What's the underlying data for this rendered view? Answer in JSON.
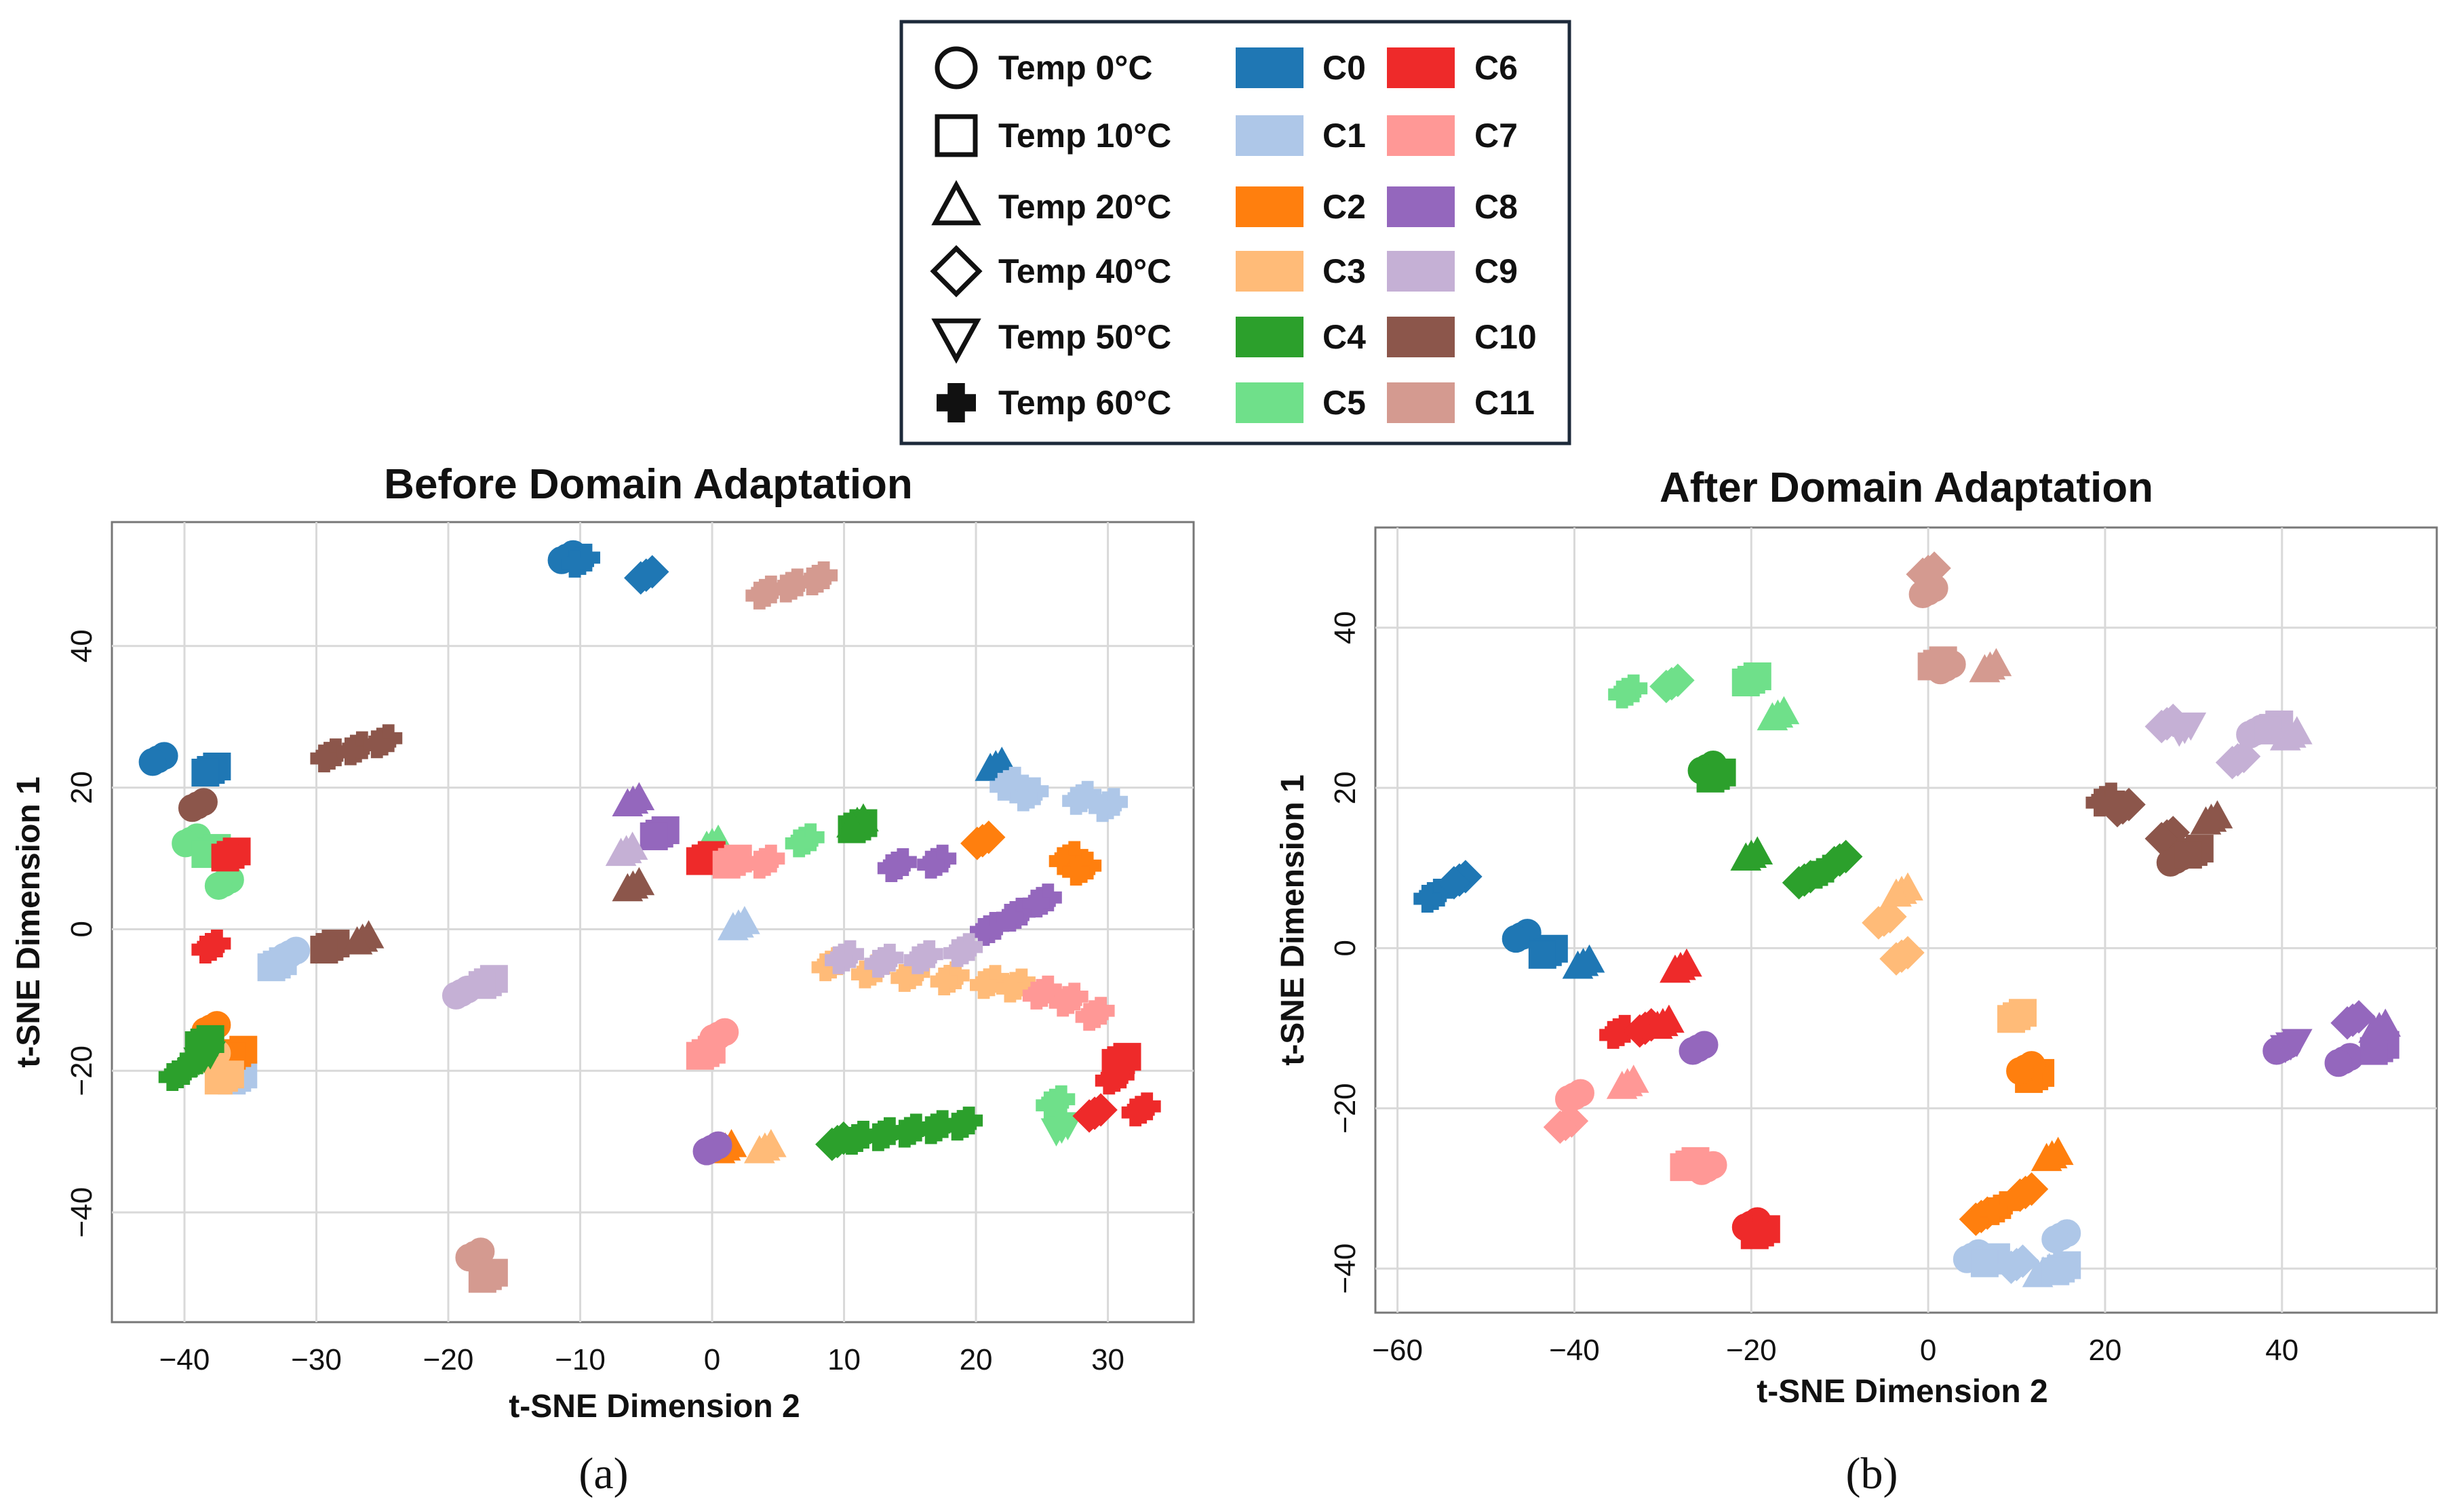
{
  "legend": {
    "shapes": [
      {
        "label": "Temp 0°C",
        "icon": "circle"
      },
      {
        "label": "Temp 10°C",
        "icon": "square"
      },
      {
        "label": "Temp 20°C",
        "icon": "triangle-up"
      },
      {
        "label": "Temp 40°C",
        "icon": "diamond"
      },
      {
        "label": "Temp 50°C",
        "icon": "triangle-down"
      },
      {
        "label": "Temp 60°C",
        "icon": "plus"
      }
    ],
    "clusters": [
      {
        "label": "C0",
        "color": "#1f77b4"
      },
      {
        "label": "C1",
        "color": "#aec7e8"
      },
      {
        "label": "C2",
        "color": "#ff7f0e"
      },
      {
        "label": "C3",
        "color": "#ffbb78"
      },
      {
        "label": "C4",
        "color": "#2ca02c"
      },
      {
        "label": "C5",
        "color": "#6fe08a"
      },
      {
        "label": "C6",
        "color": "#ee2a2a"
      },
      {
        "label": "C7",
        "color": "#ff9896"
      },
      {
        "label": "C8",
        "color": "#9467bd"
      },
      {
        "label": "C9",
        "color": "#c5b0d5"
      },
      {
        "label": "C10",
        "color": "#8c564b"
      },
      {
        "label": "C11",
        "color": "#d49a90"
      }
    ]
  },
  "chart_data": [
    {
      "type": "scatter",
      "title": "Before Domain Adaptation",
      "xlabel": "t-SNE Dimension 2",
      "ylabel": "t-SNE Dimension 1",
      "xlim": [
        -45.5,
        36.5
      ],
      "ylim": [
        -55.5,
        57.5
      ],
      "xticks": [
        -40,
        -30,
        -20,
        -10,
        0,
        10,
        20,
        30
      ],
      "yticks": [
        -40,
        -20,
        0,
        20,
        40
      ],
      "caption": "(a)",
      "points": [
        [
          "C0",
          "circle",
          -42,
          24
        ],
        [
          "C0",
          "square",
          -38,
          22.5
        ],
        [
          "C0",
          "circle",
          -11,
          52.5
        ],
        [
          "C0",
          "plus",
          -10,
          52
        ],
        [
          "C0",
          "diamond",
          -5,
          50
        ],
        [
          "C0",
          "triangle-up",
          21.5,
          23
        ],
        [
          "C1",
          "square",
          -33,
          -5
        ],
        [
          "C1",
          "circle",
          -32,
          -3.5
        ],
        [
          "C1",
          "square",
          -36,
          -21
        ],
        [
          "C1",
          "triangle-up",
          2,
          0.5
        ],
        [
          "C1",
          "plus",
          22.5,
          20.5
        ],
        [
          "C1",
          "plus",
          24,
          19
        ],
        [
          "C1",
          "plus",
          28,
          18.5
        ],
        [
          "C1",
          "plus",
          30,
          17.5
        ],
        [
          "C2",
          "circle",
          -38,
          -14
        ],
        [
          "C2",
          "square",
          -36,
          -17.5
        ],
        [
          "C2",
          "triangle-up",
          1,
          -31
        ],
        [
          "C2",
          "diamond",
          20.5,
          12.5
        ],
        [
          "C2",
          "plus",
          27,
          10
        ],
        [
          "C2",
          "plus",
          28,
          8.5
        ],
        [
          "C3",
          "circle",
          -38,
          -18
        ],
        [
          "C3",
          "square",
          -37,
          -21
        ],
        [
          "C3",
          "triangle-up",
          4,
          -31
        ],
        [
          "C3",
          "plus",
          9,
          -5
        ],
        [
          "C3",
          "plus",
          12,
          -6
        ],
        [
          "C3",
          "plus",
          15,
          -6.5
        ],
        [
          "C3",
          "plus",
          18,
          -7
        ],
        [
          "C3",
          "plus",
          21,
          -7.5
        ],
        [
          "C3",
          "plus",
          23,
          -8
        ],
        [
          "C4",
          "plus",
          -40.5,
          -20.5
        ],
        [
          "C4",
          "plus",
          -39.5,
          -19
        ],
        [
          "C4",
          "square",
          -38.5,
          -16
        ],
        [
          "C4",
          "triangle-down",
          -38.5,
          -18
        ],
        [
          "C4",
          "diamond",
          9.5,
          -30
        ],
        [
          "C4",
          "plus",
          11,
          -29.5
        ],
        [
          "C4",
          "plus",
          13,
          -29
        ],
        [
          "C4",
          "plus",
          15,
          -28.5
        ],
        [
          "C4",
          "plus",
          17,
          -28
        ],
        [
          "C4",
          "plus",
          19,
          -27.5
        ],
        [
          "C4",
          "square",
          11,
          14.5
        ],
        [
          "C4",
          "triangle-up",
          11,
          15
        ],
        [
          "C5",
          "circle",
          -39.5,
          12.5
        ],
        [
          "C5",
          "square",
          -38,
          11
        ],
        [
          "C5",
          "circle",
          -37,
          6.5
        ],
        [
          "C5",
          "triangle-up",
          0,
          12
        ],
        [
          "C5",
          "plus",
          7,
          12.5
        ],
        [
          "C5",
          "plus",
          26,
          -24.5
        ],
        [
          "C5",
          "triangle-down",
          26.5,
          -28
        ],
        [
          "C6",
          "plus",
          -38,
          -2.5
        ],
        [
          "C6",
          "square",
          -36.5,
          10.5
        ],
        [
          "C6",
          "square",
          -0.5,
          10
        ],
        [
          "C6",
          "diamond",
          29,
          -26
        ],
        [
          "C6",
          "plus",
          30.5,
          -21
        ],
        [
          "C6",
          "square",
          31,
          -18.5
        ],
        [
          "C6",
          "plus",
          32.5,
          -25.5
        ],
        [
          "C7",
          "square",
          1.5,
          9.5
        ],
        [
          "C7",
          "plus",
          4,
          9.5
        ],
        [
          "C7",
          "square",
          -0.5,
          -17.5
        ],
        [
          "C7",
          "circle",
          0.5,
          -15
        ],
        [
          "C7",
          "plus",
          25,
          -9
        ],
        [
          "C7",
          "plus",
          27,
          -10
        ],
        [
          "C7",
          "plus",
          29,
          -12
        ],
        [
          "C8",
          "triangle-up",
          -6,
          18
        ],
        [
          "C8",
          "square",
          -4,
          13.5
        ],
        [
          "C8",
          "circle",
          0,
          -31
        ],
        [
          "C8",
          "plus",
          14,
          9
        ],
        [
          "C8",
          "plus",
          17,
          9.5
        ],
        [
          "C8",
          "plus",
          21,
          0
        ],
        [
          "C8",
          "plus",
          23,
          2
        ],
        [
          "C8",
          "plus",
          25,
          4
        ],
        [
          "C9",
          "triangle-up",
          -6.5,
          11
        ],
        [
          "C9",
          "circle",
          -19,
          -9
        ],
        [
          "C9",
          "square",
          -17,
          -7.5
        ],
        [
          "C9",
          "plus",
          10,
          -4
        ],
        [
          "C9",
          "plus",
          13,
          -4.5
        ],
        [
          "C9",
          "plus",
          16,
          -4
        ],
        [
          "C9",
          "plus",
          19,
          -3
        ],
        [
          "C10",
          "circle",
          -39,
          17.5
        ],
        [
          "C10",
          "square",
          -29,
          -2.5
        ],
        [
          "C10",
          "triangle-up",
          -26.5,
          -1.5
        ],
        [
          "C10",
          "triangle-up",
          -6,
          6
        ],
        [
          "C10",
          "plus",
          -29,
          24.5
        ],
        [
          "C10",
          "plus",
          -27,
          25.5
        ],
        [
          "C10",
          "plus",
          -25,
          26.5
        ],
        [
          "C11",
          "circle",
          -18,
          -46
        ],
        [
          "C11",
          "square",
          -17,
          -49
        ],
        [
          "C11",
          "plus",
          4,
          47.5
        ],
        [
          "C11",
          "plus",
          6,
          48.5
        ],
        [
          "C11",
          "plus",
          8,
          49.5
        ]
      ]
    },
    {
      "type": "scatter",
      "title": "After Domain Adaptation",
      "xlabel": "t-SNE Dimension 2",
      "ylabel": "t-SNE Dimension 1",
      "xlim": [
        -62.5,
        57.5
      ],
      "ylim": [
        -45.5,
        52.5
      ],
      "xticks": [
        -60,
        -40,
        -20,
        0,
        20,
        40
      ],
      "yticks": [
        -40,
        -20,
        0,
        20,
        40
      ],
      "caption": "(b)",
      "points": [
        [
          "C0",
          "plus",
          -56,
          6.5
        ],
        [
          "C0",
          "diamond",
          -53,
          8.5
        ],
        [
          "C0",
          "circle",
          -46,
          1.5
        ],
        [
          "C0",
          "square",
          -43,
          -0.5
        ],
        [
          "C0",
          "triangle-up",
          -39,
          -2
        ],
        [
          "C1",
          "circle",
          5,
          -38.5
        ],
        [
          "C1",
          "square",
          7,
          -39
        ],
        [
          "C1",
          "diamond",
          10,
          -39.5
        ],
        [
          "C1",
          "triangle-up",
          13,
          -40.5
        ],
        [
          "C1",
          "square",
          15,
          -40
        ],
        [
          "C1",
          "circle",
          15,
          -36
        ],
        [
          "C2",
          "diamond",
          6,
          -33.5
        ],
        [
          "C2",
          "plus",
          8,
          -32.5
        ],
        [
          "C2",
          "diamond",
          11,
          -30.5
        ],
        [
          "C2",
          "triangle-up",
          14,
          -26
        ],
        [
          "C2",
          "square",
          12,
          -16
        ],
        [
          "C2",
          "circle",
          11,
          -15
        ],
        [
          "C3",
          "diamond",
          -5,
          3.5
        ],
        [
          "C3",
          "triangle-up",
          -3,
          7
        ],
        [
          "C3",
          "diamond",
          -3,
          -1
        ],
        [
          "C3",
          "square",
          10,
          -8.5
        ],
        [
          "C4",
          "circle",
          -25,
          22.5
        ],
        [
          "C4",
          "square",
          -24,
          21.5
        ],
        [
          "C4",
          "triangle-up",
          -20,
          11.5
        ],
        [
          "C4",
          "diamond",
          -14,
          8.5
        ],
        [
          "C4",
          "plus",
          -12,
          9.5
        ],
        [
          "C4",
          "diamond",
          -10,
          11
        ],
        [
          "C5",
          "plus",
          -34,
          32
        ],
        [
          "C5",
          "diamond",
          -29,
          33
        ],
        [
          "C5",
          "square",
          -20,
          33.5
        ],
        [
          "C5",
          "triangle-up",
          -17,
          29
        ],
        [
          "C6",
          "plus",
          -35,
          -10.5
        ],
        [
          "C6",
          "diamond",
          -32,
          -10
        ],
        [
          "C6",
          "triangle-up",
          -30,
          -9.5
        ],
        [
          "C6",
          "triangle-up",
          -28,
          -2.5
        ],
        [
          "C6",
          "circle",
          -20,
          -34.5
        ],
        [
          "C6",
          "square",
          -19,
          -35.5
        ],
        [
          "C7",
          "diamond",
          -41,
          -22
        ],
        [
          "C7",
          "circle",
          -40,
          -18.5
        ],
        [
          "C7",
          "triangle-up",
          -34,
          -17
        ],
        [
          "C7",
          "square",
          -27,
          -27
        ],
        [
          "C7",
          "circle",
          -25,
          -27.5
        ],
        [
          "C8",
          "circle",
          -26,
          -12.5
        ],
        [
          "C8",
          "circle",
          40,
          -12.5
        ],
        [
          "C8",
          "triangle-down",
          41,
          -12
        ],
        [
          "C8",
          "circle",
          47,
          -14
        ],
        [
          "C8",
          "diamond",
          48,
          -9
        ],
        [
          "C8",
          "square",
          51,
          -12.5
        ],
        [
          "C8",
          "triangle-up",
          51,
          -10
        ],
        [
          "C9",
          "diamond",
          27,
          28
        ],
        [
          "C9",
          "triangle-down",
          29,
          27.5
        ],
        [
          "C9",
          "diamond",
          35,
          23.5
        ],
        [
          "C9",
          "circle",
          37,
          27
        ],
        [
          "C9",
          "square",
          39,
          27.5
        ],
        [
          "C9",
          "triangle-up",
          41,
          26.5
        ],
        [
          "C10",
          "plus",
          20,
          18.5
        ],
        [
          "C10",
          "diamond",
          22,
          17.5
        ],
        [
          "C10",
          "diamond",
          27,
          14
        ],
        [
          "C10",
          "circle",
          28,
          11
        ],
        [
          "C10",
          "square",
          30,
          12
        ],
        [
          "C10",
          "triangle-up",
          32,
          16
        ],
        [
          "C11",
          "diamond",
          0,
          47
        ],
        [
          "C11",
          "circle",
          0,
          44.5
        ],
        [
          "C11",
          "square",
          1,
          35.5
        ],
        [
          "C11",
          "circle",
          2,
          35
        ],
        [
          "C11",
          "triangle-up",
          7,
          35
        ]
      ]
    }
  ]
}
